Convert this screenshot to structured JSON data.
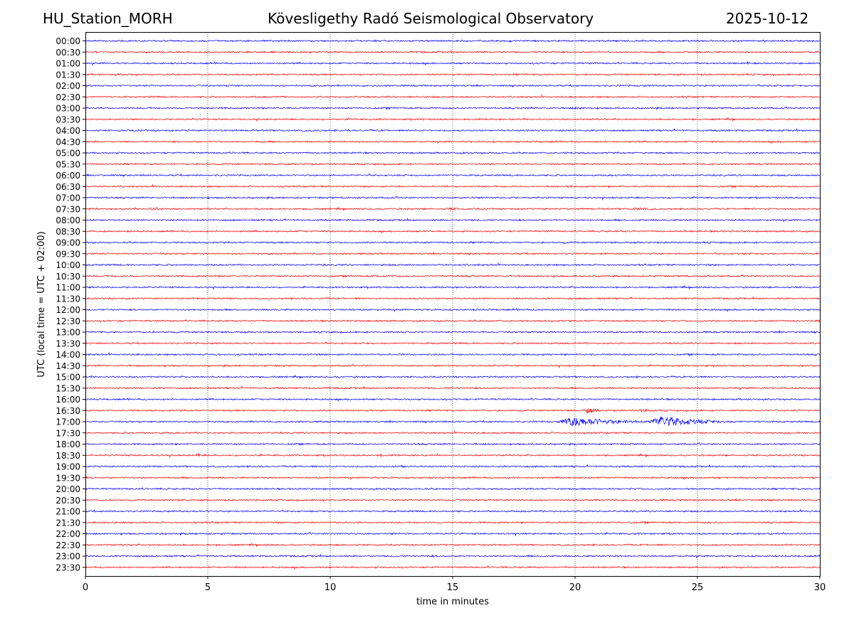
{
  "header": {
    "station": "HU_Station_MORH",
    "observatory": "Kövesligethy Radó Seismological Observatory",
    "date": "2025-10-12"
  },
  "chart_data": {
    "type": "line",
    "title": "Kövesligethy Radó Seismological Observatory",
    "xlabel": "time in minutes",
    "ylabel": "UTC (local time = UTC + 02:00)",
    "xlim": [
      0,
      30
    ],
    "x_ticks": [
      "0",
      "5",
      "10",
      "15",
      "20",
      "25",
      "30"
    ],
    "x_tick_values": [
      0,
      5,
      10,
      15,
      20,
      25,
      30
    ],
    "grid": "vertical dotted at 5,10,15,20,25",
    "row_labels": [
      "00:00",
      "00:30",
      "01:00",
      "01:30",
      "02:00",
      "02:30",
      "03:00",
      "03:30",
      "04:00",
      "04:30",
      "05:00",
      "05:30",
      "06:00",
      "06:30",
      "07:00",
      "07:30",
      "08:00",
      "08:30",
      "09:00",
      "09:30",
      "10:00",
      "10:30",
      "11:00",
      "11:30",
      "12:00",
      "12:30",
      "13:00",
      "13:30",
      "14:00",
      "14:30",
      "15:00",
      "15:30",
      "16:00",
      "16:30",
      "17:00",
      "17:30",
      "18:00",
      "18:30",
      "19:00",
      "19:30",
      "20:00",
      "20:30",
      "21:00",
      "21:30",
      "22:00",
      "22:30",
      "23:00",
      "23:30"
    ],
    "colors": [
      "#0000ff",
      "#ff0000"
    ],
    "base_noise": 1.2,
    "events": [
      {
        "row": "00:00",
        "t": 27.8,
        "dur": 0.8,
        "amp": 1.5
      },
      {
        "row": "01:00",
        "t": 25.2,
        "dur": 1.5,
        "amp": 1.3
      },
      {
        "row": "01:00",
        "t": 27.0,
        "dur": 0.15,
        "amp": 5
      },
      {
        "row": "02:00",
        "t": 12.8,
        "dur": 0.6,
        "amp": 1.5
      },
      {
        "row": "02:30",
        "t": 15.0,
        "dur": 3.0,
        "amp": 1.2
      },
      {
        "row": "03:00",
        "t": 19.5,
        "dur": 3.0,
        "amp": 1.6
      },
      {
        "row": "07:30",
        "t": 2.5,
        "dur": 1.5,
        "amp": 2.5
      },
      {
        "row": "07:30",
        "t": 14.7,
        "dur": 1.5,
        "amp": 2
      },
      {
        "row": "07:30",
        "t": 22.0,
        "dur": 3.5,
        "amp": 2
      },
      {
        "row": "07:30",
        "t": 27.5,
        "dur": 2.5,
        "amp": 1.5
      },
      {
        "row": "09:00",
        "t": 19.5,
        "dur": 0.3,
        "amp": 2
      },
      {
        "row": "11:30",
        "t": 25.3,
        "dur": 0.5,
        "amp": 1.5
      },
      {
        "row": "16:30",
        "t": 20.3,
        "dur": 1.3,
        "amp": 4
      },
      {
        "row": "16:30",
        "t": 22.5,
        "dur": 1.5,
        "amp": 2.5
      },
      {
        "row": "17:00",
        "t": 19.2,
        "dur": 4.5,
        "amp": 7
      },
      {
        "row": "17:00",
        "t": 22.9,
        "dur": 4.0,
        "amp": 8
      },
      {
        "row": "18:30",
        "t": 4.5,
        "dur": 0.6,
        "amp": 3
      },
      {
        "row": "18:30",
        "t": 12.0,
        "dur": 0.5,
        "amp": 2
      },
      {
        "row": "19:00",
        "t": 12.8,
        "dur": 0.7,
        "amp": 2
      },
      {
        "row": "22:00",
        "t": 5.6,
        "dur": 0.5,
        "amp": 1.5
      },
      {
        "row": "23:00",
        "t": 14.1,
        "dur": 0.8,
        "amp": 1.5
      }
    ]
  }
}
